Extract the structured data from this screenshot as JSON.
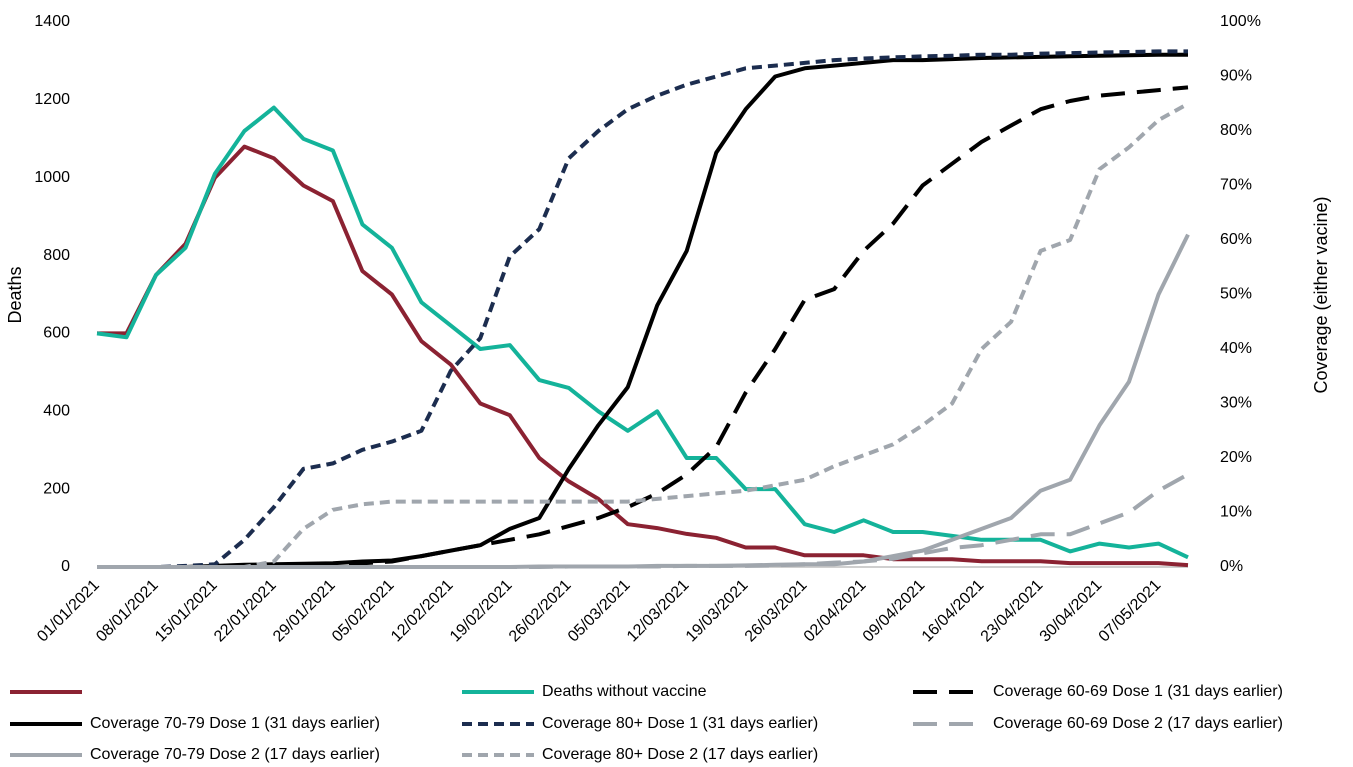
{
  "chart_data": {
    "type": "line",
    "y_label": "Deaths",
    "y2_label": "Coverage (either vacine)",
    "categories": [
      "01/01/2021",
      null,
      "08/01/2021",
      null,
      "15/01/2021",
      null,
      "22/01/2021",
      null,
      "29/01/2021",
      null,
      "05/02/2021",
      null,
      "12/02/2021",
      null,
      "19/02/2021",
      null,
      "26/02/2021",
      null,
      "05/03/2021",
      null,
      "12/03/2021",
      null,
      "19/03/2021",
      null,
      "26/03/2021",
      null,
      "02/04/2021",
      null,
      "09/04/2021",
      null,
      "16/04/2021",
      null,
      "23/04/2021",
      null,
      "30/04/2021",
      null,
      "07/05/2021",
      null
    ],
    "ylim": [
      0,
      1400
    ],
    "yticks": [
      0,
      200,
      400,
      600,
      800,
      1000,
      1200,
      1400
    ],
    "y2lim": [
      0,
      100
    ],
    "y2ticks": [
      {
        "value": 0,
        "label": "0%"
      },
      {
        "value": 10,
        "label": "10%"
      },
      {
        "value": 20,
        "label": "20%"
      },
      {
        "value": 30,
        "label": "30%"
      },
      {
        "value": 40,
        "label": "40%"
      },
      {
        "value": 50,
        "label": "50%"
      },
      {
        "value": 60,
        "label": "60%"
      },
      {
        "value": 70,
        "label": "70%"
      },
      {
        "value": 80,
        "label": "80%"
      },
      {
        "value": 90,
        "label": "90%"
      },
      {
        "value": 100,
        "label": "100%"
      }
    ],
    "series": [
      {
        "color": "#8b2232",
        "dash": "solid",
        "axis": "y",
        "values": [
          600,
          600,
          750,
          830,
          1000,
          1080,
          1050,
          980,
          940,
          760,
          700,
          580,
          520,
          420,
          390,
          280,
          220,
          175,
          110,
          100,
          85,
          75,
          50,
          50,
          30,
          30,
          30,
          20,
          20,
          20,
          15,
          15,
          15,
          10,
          10,
          10,
          10,
          5
        ]
      },
      {
        "name": "Deaths without vaccine",
        "color": "#14b39a",
        "dash": "solid",
        "axis": "y",
        "values": [
          600,
          590,
          750,
          820,
          1010,
          1120,
          1180,
          1100,
          1070,
          880,
          820,
          680,
          620,
          560,
          570,
          480,
          460,
          400,
          350,
          400,
          280,
          280,
          200,
          200,
          110,
          90,
          120,
          90,
          90,
          80,
          70,
          70,
          70,
          40,
          60,
          50,
          60,
          25
        ]
      },
      {
        "name": "Coverage 60-69 Dose 1 (31 days earlier)",
        "color": "#000000",
        "dash": "long",
        "axis": "y2",
        "values": [
          0,
          0,
          0,
          0,
          0.1,
          0.2,
          0.3,
          0.4,
          0.5,
          0.7,
          1,
          2,
          3,
          4,
          5,
          6,
          7.5,
          9,
          11,
          13.5,
          17,
          22,
          32,
          40,
          49,
          51,
          58,
          63,
          70,
          74,
          78,
          81,
          84,
          85.5,
          86.5,
          87,
          87.5,
          88
        ]
      },
      {
        "name": "Coverage 70-79 Dose 1 (31 days earlier)",
        "color": "#000000",
        "dash": "solid",
        "axis": "y2",
        "values": [
          0,
          0,
          0,
          0,
          0.2,
          0.4,
          0.5,
          0.6,
          0.7,
          1,
          1.2,
          2,
          3,
          4,
          7,
          9,
          18,
          26,
          33,
          48,
          58,
          76,
          84,
          90,
          91.5,
          92,
          92.5,
          93,
          93,
          93.2,
          93.4,
          93.5,
          93.6,
          93.7,
          93.8,
          93.9,
          94,
          94
        ]
      },
      {
        "name": "Coverage 80+ Dose 1 (31 days earlier)",
        "color": "#1c2d4f",
        "dash": "short",
        "axis": "y2",
        "values": [
          0,
          0,
          0,
          0.2,
          0.5,
          5,
          11,
          18,
          19,
          21.5,
          23,
          25,
          36,
          42,
          57,
          62,
          75,
          80,
          84,
          86.5,
          88.5,
          90,
          91.5,
          92,
          92.5,
          93,
          93.3,
          93.5,
          93.7,
          93.8,
          94,
          94,
          94.2,
          94.3,
          94.4,
          94.5,
          94.6,
          94.6
        ]
      },
      {
        "name": "Coverage 60-69 Dose 2 (17 days earlier)",
        "color": "#a0a6ad",
        "dash": "long",
        "axis": "y2",
        "values": [
          0,
          0,
          0,
          0,
          0,
          0,
          0,
          0,
          0,
          0,
          0,
          0,
          0,
          0,
          0,
          0,
          0.1,
          0.1,
          0.1,
          0.1,
          0.2,
          0.2,
          0.2,
          0.3,
          0.5,
          0.8,
          1,
          1.5,
          2.5,
          3.5,
          4,
          5,
          6,
          6,
          8,
          10,
          14,
          17
        ]
      },
      {
        "name": "Coverage 70-79 Dose 2 (17 days earlier)",
        "color": "#a0a6ad",
        "dash": "solid",
        "axis": "y2",
        "values": [
          0,
          0,
          0,
          0,
          0,
          0,
          0,
          0,
          0,
          0,
          0,
          0,
          0,
          0,
          0,
          0.1,
          0.1,
          0.1,
          0.1,
          0.2,
          0.2,
          0.2,
          0.3,
          0.4,
          0.5,
          0.5,
          1,
          2,
          3,
          5,
          7,
          9,
          14,
          16,
          26,
          34,
          50,
          61
        ]
      },
      {
        "name": "Coverage 80+ Dose 2 (17 days earlier)",
        "color": "#a0a6ad",
        "dash": "short",
        "axis": "y2",
        "values": [
          0,
          0,
          0,
          0,
          0,
          0,
          1,
          7,
          10.5,
          11.5,
          12,
          12,
          12,
          12,
          12,
          12,
          12,
          12,
          12,
          12.5,
          13,
          13.5,
          14,
          15,
          16,
          18.5,
          20.5,
          22.5,
          26,
          30,
          40,
          45,
          58,
          60,
          73,
          77,
          82,
          85
        ]
      }
    ]
  }
}
